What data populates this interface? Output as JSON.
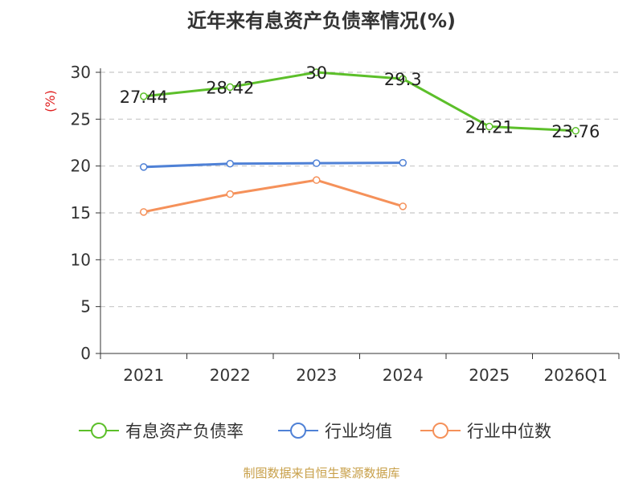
{
  "title": "近年来有息资产负债率情况(%)",
  "source": "制图数据来自恒生聚源数据库",
  "chart_data": {
    "type": "line",
    "title": "近年来有息资产负债率情况(%)",
    "xlabel": "",
    "ylabel": "(%)",
    "categories": [
      "2021",
      "2022",
      "2023",
      "2024",
      "2025",
      "2026Q1"
    ],
    "ylim": [
      0,
      30
    ],
    "yticks": [
      0,
      5,
      10,
      15,
      20,
      25,
      30
    ],
    "grid": "horizontal-dashed",
    "legend_position": "bottom",
    "series": [
      {
        "name": "有息资产负债率",
        "color": "#5cbf2a",
        "values": [
          27.44,
          28.42,
          30,
          29.3,
          24.21,
          23.76
        ],
        "labels": [
          "27.44",
          "28.42",
          "30",
          "29.3",
          "24.21",
          "23.76"
        ]
      },
      {
        "name": "行业均值",
        "color": "#4f81d6",
        "values": [
          19.9,
          20.25,
          20.3,
          20.35,
          null,
          null
        ]
      },
      {
        "name": "行业中位数",
        "color": "#f5915a",
        "values": [
          15.1,
          17.0,
          18.5,
          15.7,
          null,
          null
        ]
      }
    ]
  }
}
